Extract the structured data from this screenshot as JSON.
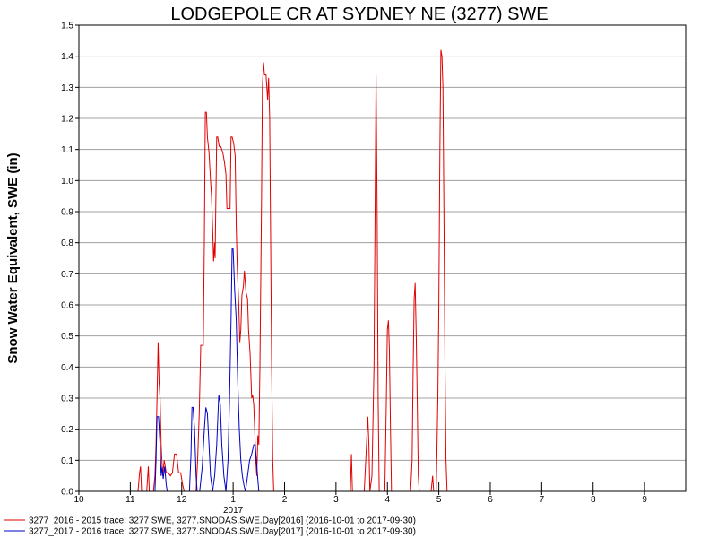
{
  "chart_data": {
    "type": "line",
    "title": "LODGEPOLE CR AT SYDNEY NE (3277) SWE",
    "ylabel": "Snow Water Equivalent, SWE (in)",
    "xlabel": "",
    "ylim": [
      0,
      1.5
    ],
    "yticks": [
      "0.0",
      "0.1",
      "0.2",
      "0.3",
      "0.4",
      "0.5",
      "0.6",
      "0.7",
      "0.8",
      "0.9",
      "1.0",
      "1.1",
      "1.2",
      "1.3",
      "1.4",
      "1.5"
    ],
    "xlim": [
      10,
      21.8
    ],
    "xticks": [
      {
        "value": 10,
        "label": "10"
      },
      {
        "value": 11,
        "label": "11"
      },
      {
        "value": 12,
        "label": "12"
      },
      {
        "value": 13,
        "label": "1"
      },
      {
        "value": 14,
        "label": "2"
      },
      {
        "value": 15,
        "label": "3"
      },
      {
        "value": 16,
        "label": "4"
      },
      {
        "value": 17,
        "label": "5"
      },
      {
        "value": 18,
        "label": "6"
      },
      {
        "value": 19,
        "label": "7"
      },
      {
        "value": 20,
        "label": "8"
      },
      {
        "value": 21,
        "label": "9"
      }
    ],
    "year_label": {
      "value": 13,
      "label": "2017"
    },
    "grid": true,
    "legend_position": "bottom-left",
    "series": [
      {
        "name": "3277_2016 - 2015 trace: 3277 SWE, 3277.SNODAS.SWE.Day[2016] (2016-10-01 to 2017-09-30)",
        "color": "#e00000",
        "segments": [
          [
            [
              11.15,
              0
            ],
            [
              11.18,
              0.06
            ],
            [
              11.2,
              0.08
            ],
            [
              11.22,
              0
            ]
          ],
          [
            [
              11.32,
              0
            ],
            [
              11.35,
              0.08
            ],
            [
              11.37,
              0
            ]
          ],
          [
            [
              11.45,
              0
            ],
            [
              11.48,
              0.05
            ],
            [
              11.5,
              0.15
            ],
            [
              11.52,
              0.3
            ],
            [
              11.54,
              0.48
            ],
            [
              11.56,
              0.35
            ],
            [
              11.58,
              0.3
            ],
            [
              11.6,
              0.15
            ],
            [
              11.63,
              0.05
            ],
            [
              11.66,
              0.1
            ],
            [
              11.7,
              0.06
            ],
            [
              11.74,
              0.06
            ],
            [
              11.78,
              0.05
            ],
            [
              11.82,
              0.06
            ],
            [
              11.86,
              0.12
            ],
            [
              11.9,
              0.12
            ],
            [
              11.94,
              0.06
            ],
            [
              11.98,
              0.06
            ],
            [
              12.02,
              0.02
            ],
            [
              12.05,
              0
            ]
          ],
          [
            [
              12.28,
              0
            ],
            [
              12.31,
              0.1
            ],
            [
              12.34,
              0.25
            ],
            [
              12.37,
              0.47
            ],
            [
              12.4,
              0.47
            ],
            [
              12.42,
              0.47
            ],
            [
              12.44,
              0.8
            ],
            [
              12.46,
              1.22
            ],
            [
              12.48,
              1.22
            ],
            [
              12.5,
              1.14
            ],
            [
              12.53,
              1.09
            ],
            [
              12.56,
              1.0
            ],
            [
              12.58,
              0.95
            ],
            [
              12.6,
              0.85
            ],
            [
              12.62,
              0.74
            ],
            [
              12.64,
              0.8
            ],
            [
              12.65,
              0.75
            ],
            [
              12.68,
              1.14
            ],
            [
              12.7,
              1.14
            ],
            [
              12.73,
              1.11
            ],
            [
              12.76,
              1.11
            ],
            [
              12.8,
              1.09
            ],
            [
              12.83,
              1.06
            ],
            [
              12.86,
              1.02
            ],
            [
              12.88,
              0.91
            ],
            [
              12.9,
              0.91
            ],
            [
              12.94,
              0.91
            ],
            [
              12.96,
              1.14
            ],
            [
              12.98,
              1.14
            ],
            [
              13.01,
              1.12
            ],
            [
              13.04,
              1.08
            ],
            [
              13.06,
              0.85
            ],
            [
              13.08,
              0.72
            ],
            [
              13.11,
              0.6
            ],
            [
              13.13,
              0.48
            ],
            [
              13.15,
              0.52
            ],
            [
              13.17,
              0.63
            ],
            [
              13.2,
              0.66
            ],
            [
              13.22,
              0.71
            ],
            [
              13.25,
              0.64
            ],
            [
              13.28,
              0.62
            ],
            [
              13.3,
              0.52
            ],
            [
              13.33,
              0.44
            ],
            [
              13.36,
              0.3
            ],
            [
              13.38,
              0.31
            ],
            [
              13.4,
              0.28
            ],
            [
              13.42,
              0.2
            ],
            [
              13.44,
              0.1
            ],
            [
              13.46,
              0.05
            ],
            [
              13.48,
              0.18
            ],
            [
              13.5,
              0.15
            ],
            [
              13.52,
              0.4
            ],
            [
              13.55,
              0.9
            ],
            [
              13.57,
              1.3
            ],
            [
              13.59,
              1.38
            ],
            [
              13.61,
              1.34
            ],
            [
              13.64,
              1.34
            ],
            [
              13.67,
              1.26
            ],
            [
              13.69,
              1.33
            ],
            [
              13.71,
              1.2
            ],
            [
              13.73,
              0.8
            ],
            [
              13.75,
              0.4
            ],
            [
              13.77,
              0.1
            ],
            [
              13.79,
              0
            ]
          ],
          [
            [
              15.28,
              0
            ],
            [
              15.3,
              0.12
            ],
            [
              15.32,
              0
            ]
          ],
          [
            [
              15.55,
              0
            ],
            [
              15.58,
              0.1
            ],
            [
              15.62,
              0.24
            ],
            [
              15.64,
              0.15
            ],
            [
              15.66,
              0
            ],
            [
              15.7,
              0.05
            ],
            [
              15.74,
              0.4
            ],
            [
              15.76,
              0.9
            ],
            [
              15.78,
              1.34
            ],
            [
              15.8,
              0.9
            ],
            [
              15.82,
              0.3
            ],
            [
              15.84,
              0
            ]
          ],
          [
            [
              15.95,
              0
            ],
            [
              15.98,
              0.3
            ],
            [
              16.0,
              0.52
            ],
            [
              16.02,
              0.55
            ],
            [
              16.04,
              0.45
            ],
            [
              16.06,
              0.2
            ],
            [
              16.08,
              0
            ]
          ],
          [
            [
              16.45,
              0
            ],
            [
              16.48,
              0.1
            ],
            [
              16.5,
              0.38
            ],
            [
              16.52,
              0.62
            ],
            [
              16.54,
              0.67
            ],
            [
              16.56,
              0.5
            ],
            [
              16.58,
              0.3
            ],
            [
              16.6,
              0.05
            ],
            [
              16.62,
              0
            ]
          ],
          [
            [
              16.85,
              0
            ],
            [
              16.88,
              0.05
            ],
            [
              16.9,
              0
            ]
          ],
          [
            [
              16.95,
              0
            ],
            [
              16.98,
              0.3
            ],
            [
              17.0,
              0.6
            ],
            [
              17.02,
              1.1
            ],
            [
              17.04,
              1.42
            ],
            [
              17.06,
              1.4
            ],
            [
              17.08,
              1.3
            ],
            [
              17.1,
              0.9
            ],
            [
              17.12,
              0.4
            ],
            [
              17.14,
              0.1
            ],
            [
              17.16,
              0
            ]
          ]
        ]
      },
      {
        "name": "3277_2017 - 2016 trace: 3277 SWE, 3277.SNODAS.SWE.Day[2017] (2016-10-01 to 2017-09-30)",
        "color": "#0000c8",
        "segments": [
          [
            [
              11.48,
              0
            ],
            [
              11.5,
              0.1
            ],
            [
              11.52,
              0.24
            ],
            [
              11.55,
              0.24
            ],
            [
              11.58,
              0.15
            ],
            [
              11.6,
              0.05
            ],
            [
              11.62,
              0.08
            ],
            [
              11.64,
              0.04
            ],
            [
              11.67,
              0.08
            ],
            [
              11.7,
              0.02
            ],
            [
              11.72,
              0
            ]
          ],
          [
            [
              12.15,
              0
            ],
            [
              12.18,
              0.12
            ],
            [
              12.2,
              0.27
            ],
            [
              12.22,
              0.27
            ],
            [
              12.25,
              0.2
            ],
            [
              12.28,
              0.05
            ],
            [
              12.3,
              0
            ],
            [
              12.35,
              0
            ],
            [
              12.4,
              0.08
            ],
            [
              12.44,
              0.2
            ],
            [
              12.47,
              0.27
            ],
            [
              12.5,
              0.25
            ],
            [
              12.53,
              0.15
            ],
            [
              12.56,
              0.05
            ],
            [
              12.6,
              0
            ],
            [
              12.64,
              0.05
            ],
            [
              12.68,
              0.15
            ],
            [
              12.72,
              0.31
            ],
            [
              12.75,
              0.28
            ],
            [
              12.78,
              0.15
            ],
            [
              12.82,
              0.05
            ],
            [
              12.86,
              0
            ],
            [
              12.9,
              0.1
            ],
            [
              12.93,
              0.3
            ],
            [
              12.96,
              0.55
            ],
            [
              12.98,
              0.78
            ],
            [
              13.0,
              0.78
            ],
            [
              13.03,
              0.65
            ],
            [
              13.06,
              0.55
            ],
            [
              13.09,
              0.35
            ],
            [
              13.12,
              0.2
            ],
            [
              13.15,
              0.1
            ],
            [
              13.18,
              0.05
            ],
            [
              13.21,
              0.02
            ],
            [
              13.24,
              0
            ],
            [
              13.28,
              0.05
            ],
            [
              13.32,
              0.1
            ],
            [
              13.36,
              0.12
            ],
            [
              13.4,
              0.15
            ],
            [
              13.43,
              0.15
            ],
            [
              13.46,
              0.08
            ],
            [
              13.5,
              0
            ]
          ]
        ]
      }
    ]
  }
}
